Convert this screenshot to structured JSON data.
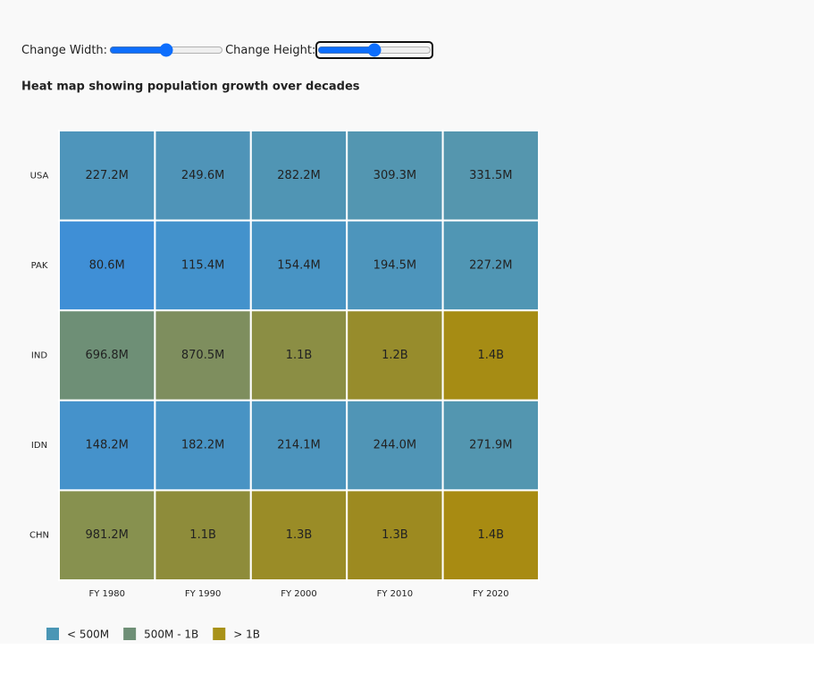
{
  "controls": {
    "width_label": "Change Width:",
    "height_label": "Change Height:"
  },
  "chart_data": {
    "type": "heatmap",
    "title": "Heat map showing population growth over decades",
    "categories": [
      "FY 1980",
      "FY 1990",
      "FY 2000",
      "FY 2010",
      "FY 2020"
    ],
    "y_categories": [
      "USA",
      "PAK",
      "IND",
      "IDN",
      "CHN"
    ],
    "values": [
      [
        227.2,
        249.6,
        282.2,
        309.3,
        331.5
      ],
      [
        80.6,
        115.4,
        154.4,
        194.5,
        227.2
      ],
      [
        696.8,
        870.5,
        1100,
        1200,
        1400
      ],
      [
        148.2,
        182.2,
        214.1,
        244.0,
        271.9
      ],
      [
        981.2,
        1100,
        1300,
        1300,
        1400
      ]
    ],
    "value_labels": [
      [
        "227.2M",
        "249.6M",
        "282.2M",
        "309.3M",
        "331.5M"
      ],
      [
        "80.6M",
        "115.4M",
        "154.4M",
        "194.5M",
        "227.2M"
      ],
      [
        "696.8M",
        "870.5M",
        "1.1B",
        "1.2B",
        "1.4B"
      ],
      [
        "148.2M",
        "182.2M",
        "214.1M",
        "244.0M",
        "271.9M"
      ],
      [
        "981.2M",
        "1.1B",
        "1.3B",
        "1.3B",
        "1.4B"
      ]
    ],
    "colors": [
      [
        "#4e95bb",
        "#4f94b8",
        "#5095b4",
        "#5396b1",
        "#5596ae"
      ],
      [
        "#3f8fd6",
        "#4392cc",
        "#4894c4",
        "#4d95bc",
        "#5096b4"
      ],
      [
        "#6e8f76",
        "#7e8e5e",
        "#8b8e44",
        "#978c2c",
        "#a68c14"
      ],
      [
        "#4592cb",
        "#4893c4",
        "#4c94bd",
        "#5095b6",
        "#5396b0"
      ],
      [
        "#87914f",
        "#8e8c3a",
        "#9a8c27",
        "#9d8a20",
        "#a88b12"
      ]
    ],
    "legend": [
      {
        "name": "< 500M",
        "color": "#4a96b5"
      },
      {
        "name": "500M - 1B",
        "color": "#6e8f76"
      },
      {
        "name": "> 1B",
        "color": "#a89218"
      }
    ]
  }
}
